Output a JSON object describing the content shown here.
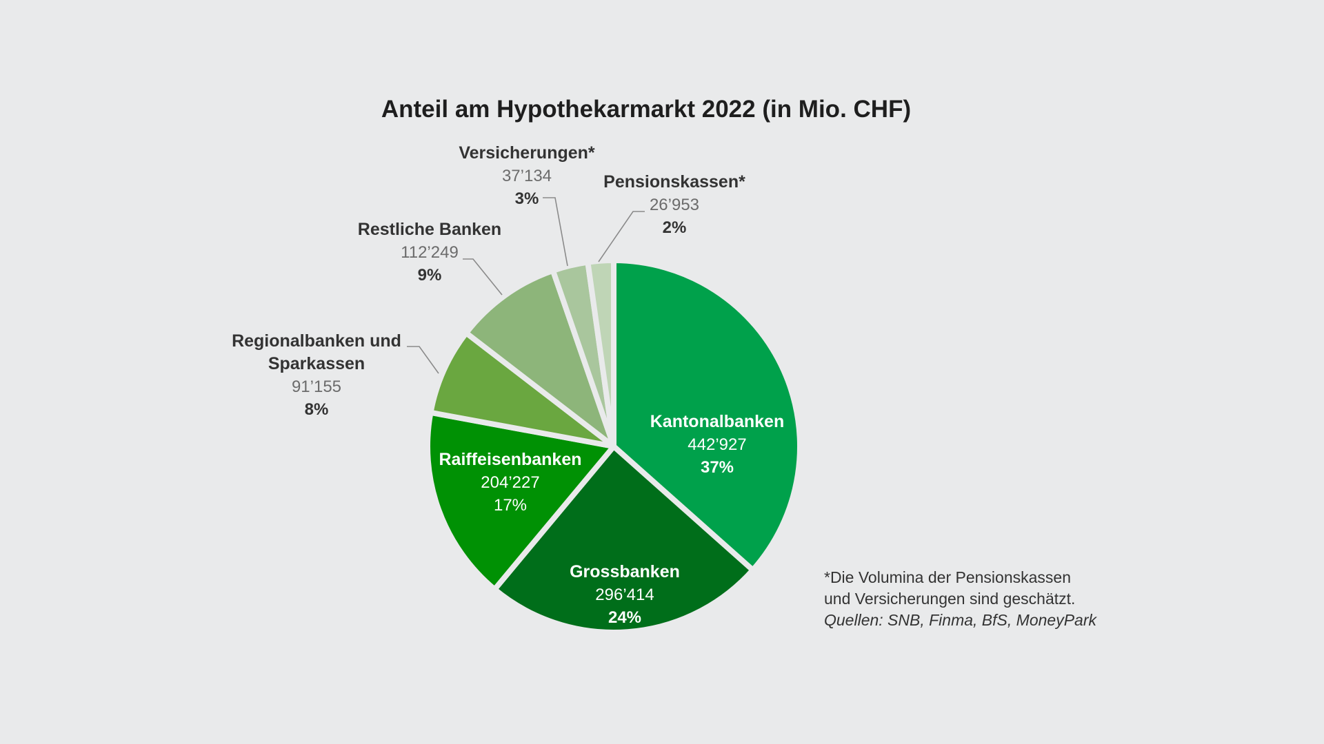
{
  "chart_data": {
    "type": "pie",
    "title": "Anteil am Hypothekarmarkt 2022 (in Mio. CHF)",
    "slices": [
      {
        "label": "Kantonalbanken",
        "value_text": "442’927",
        "value": 442927,
        "percent_text": "37%",
        "color": "#00a14b"
      },
      {
        "label": "Grossbanken",
        "value_text": "296’414",
        "value": 296414,
        "percent_text": "24%",
        "color": "#006e1a"
      },
      {
        "label": "Raiffeisenbanken",
        "value_text": "204’227",
        "value": 204227,
        "percent_text": "17%",
        "color": "#009104"
      },
      {
        "label": "Regionalbanken und Sparkassen",
        "label_lines": [
          "Regionalbanken und",
          "Sparkassen"
        ],
        "value_text": "91’155",
        "value": 91155,
        "percent_text": "8%",
        "color": "#6aa740"
      },
      {
        "label": "Restliche Banken",
        "value_text": "112’249",
        "value": 112249,
        "percent_text": "9%",
        "color": "#8db57a"
      },
      {
        "label": "Versicherungen*",
        "value_text": "37’134",
        "value": 37134,
        "percent_text": "3%",
        "color": "#a9c69d"
      },
      {
        "label": "Pensionskassen*",
        "value_text": "26’953",
        "value": 26953,
        "percent_text": "2%",
        "color": "#bfd5b6"
      }
    ],
    "legend": "none"
  },
  "notes": {
    "line1": "*Die Volumina der Pensionskassen",
    "line2": "und Versicherungen sind geschätzt.",
    "sources": "Quellen: SNB, Finma, BfS, MoneyPark"
  },
  "colors": {
    "background": "#e9eaeb",
    "separator": "#e9eaeb",
    "leader_line": "#8a8a8a",
    "inner_label": "#ffffff",
    "outer_label": "#333333",
    "outer_value": "#6b6b6b"
  }
}
